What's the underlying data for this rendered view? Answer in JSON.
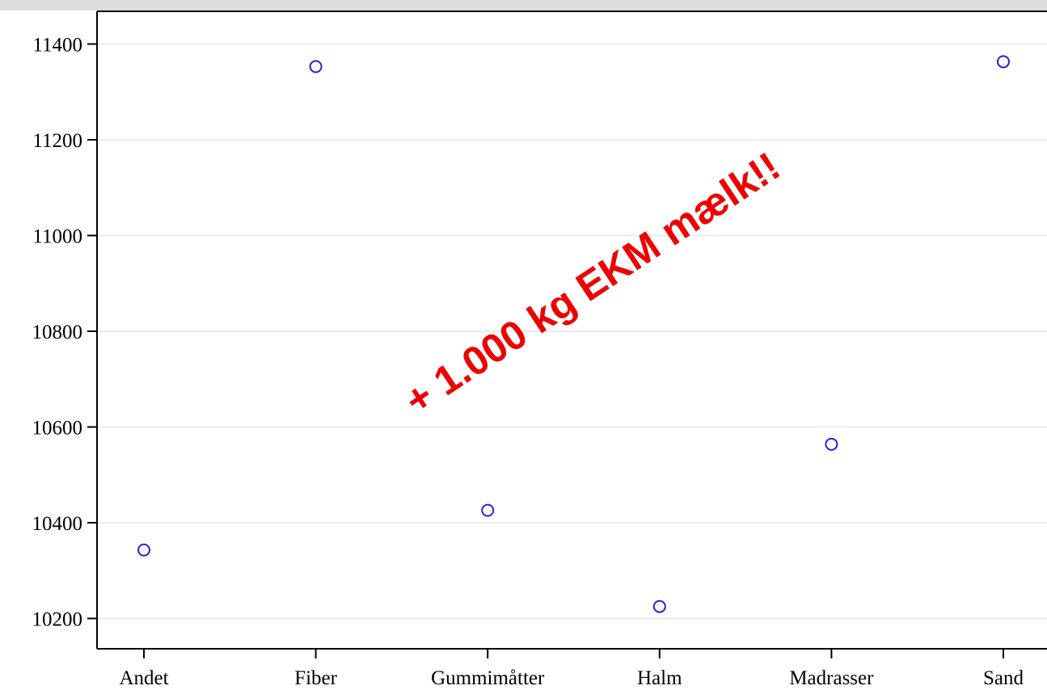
{
  "chart_data": {
    "type": "scatter",
    "title": "",
    "xlabel": "",
    "ylabel": "",
    "categories": [
      "Andet",
      "Fiber",
      "Gummimåtter",
      "Halm",
      "Madrasser",
      "Sand"
    ],
    "values": [
      10343,
      11353,
      10426,
      10225,
      10564,
      11363
    ],
    "ylim": [
      10120,
      11470
    ],
    "yticks": [
      10200,
      10400,
      10600,
      10800,
      11000,
      11200,
      11400
    ],
    "ytick_labels": [
      "10200",
      "10400",
      "10600",
      "10800",
      "11000",
      "11200",
      "11400"
    ],
    "grid": true,
    "marker": "open-circle",
    "marker_color": "#2b1fd6",
    "grid_color": "#ebebeb",
    "annotation": {
      "text": "+ 1.000 kg EKM mælk!!",
      "color": "#ee0000"
    }
  }
}
